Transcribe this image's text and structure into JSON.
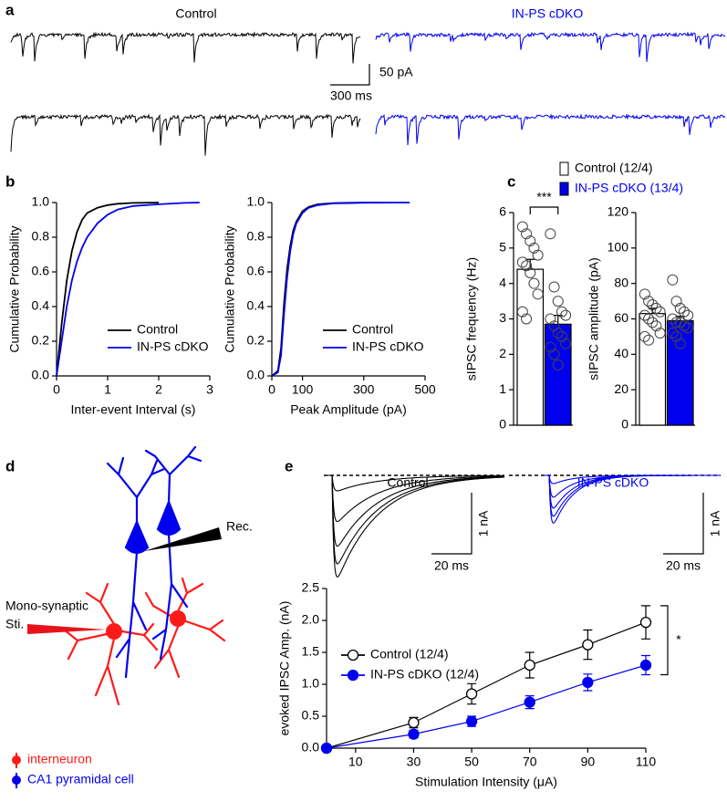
{
  "panel_labels": [
    "a",
    "b",
    "c",
    "d",
    "e"
  ],
  "traces_a": {
    "labels": [
      "Control",
      "IN-PS cDKO"
    ],
    "scale_y": "50 pA",
    "scale_x": "300 ms"
  },
  "traces_e": {
    "labels": [
      "Control",
      "IN-PS cDKO"
    ],
    "scale_y": [
      "1 nA",
      "1 nA"
    ],
    "scale_x": [
      "20 ms",
      "20 ms"
    ]
  },
  "diagram": {
    "recording": "Rec.",
    "stimulation": [
      "Mono-synaptic",
      "Sti."
    ],
    "legend": [
      "interneuron",
      "CA1 pyramidal cell"
    ]
  },
  "chart_data": [
    {
      "type": "line",
      "xlabel": "Inter-event Interval (s)",
      "ylabel": "Cumulative Probability",
      "xlim": [
        0,
        3
      ],
      "xticks": [
        0,
        1,
        2,
        3
      ],
      "ylim": [
        0,
        1
      ],
      "yticks": [
        {
          "value": 0,
          "label": "0.0"
        },
        0.2,
        0.4,
        0.6,
        0.8,
        {
          "value": 1,
          "label": "1.0"
        }
      ],
      "legend": "lower right",
      "series": [
        {
          "name": "Control",
          "color": "#000000",
          "x": [
            0,
            0.1,
            0.2,
            0.3,
            0.4,
            0.5,
            0.6,
            0.8,
            1.0,
            1.2,
            1.5,
            2.0
          ],
          "values": [
            0,
            0.3,
            0.55,
            0.72,
            0.83,
            0.9,
            0.94,
            0.97,
            0.985,
            0.993,
            0.998,
            1.0
          ]
        },
        {
          "name": "IN-PS cDKO",
          "color": "#0000ee",
          "x": [
            0,
            0.1,
            0.2,
            0.3,
            0.4,
            0.5,
            0.6,
            0.8,
            1.0,
            1.2,
            1.5,
            2.0,
            2.5,
            2.8
          ],
          "values": [
            0,
            0.2,
            0.4,
            0.55,
            0.66,
            0.74,
            0.8,
            0.88,
            0.93,
            0.96,
            0.98,
            0.99,
            0.998,
            1.0
          ]
        }
      ]
    },
    {
      "type": "line",
      "xlabel": "Peak Amplitude (pA)",
      "ylabel": "Cumulative Probability",
      "xlim": [
        0,
        500
      ],
      "xticks": [
        0,
        100,
        300,
        500
      ],
      "ylim": [
        0,
        1
      ],
      "yticks": [
        {
          "value": 0,
          "label": "0.0"
        },
        0.2,
        0.4,
        0.6,
        0.8,
        {
          "value": 1,
          "label": "1.0"
        }
      ],
      "legend": "lower right",
      "series": [
        {
          "name": "Control",
          "color": "#000000",
          "x": [
            0,
            20,
            30,
            40,
            50,
            60,
            70,
            80,
            100,
            120,
            150,
            200,
            300,
            350
          ],
          "values": [
            0,
            0.03,
            0.16,
            0.42,
            0.62,
            0.75,
            0.84,
            0.89,
            0.95,
            0.975,
            0.99,
            0.997,
            1,
            1
          ]
        },
        {
          "name": "IN-PS cDKO",
          "color": "#0000ee",
          "x": [
            0,
            20,
            30,
            40,
            50,
            60,
            70,
            80,
            100,
            120,
            150,
            200,
            300,
            400,
            450
          ],
          "values": [
            0,
            0.02,
            0.12,
            0.36,
            0.57,
            0.72,
            0.82,
            0.88,
            0.94,
            0.97,
            0.985,
            0.995,
            0.999,
            1,
            1
          ]
        }
      ]
    },
    {
      "type": "bar",
      "ylabel": "sIPSC frequency (Hz)",
      "ylim": [
        0,
        6
      ],
      "yticks": [
        0,
        1,
        2,
        3,
        4,
        5,
        6
      ],
      "annotation": "***",
      "series": [
        {
          "name": "Control (12/4)",
          "color": "#ffffff",
          "values": [
            4.4
          ],
          "errors": [
            0.28
          ],
          "points": [
            5.6,
            5.4,
            5.2,
            5.0,
            4.8,
            4.6,
            4.5,
            4.3,
            4.0,
            3.7,
            3.2,
            3.0
          ]
        },
        {
          "name": "IN-PS cDKO (13/4)",
          "color": "#0000ee",
          "values": [
            2.85
          ],
          "errors": [
            0.25
          ],
          "points": [
            5.4,
            3.9,
            3.5,
            3.2,
            3.1,
            3.0,
            2.8,
            2.6,
            2.5,
            2.3,
            2.2,
            2.0,
            1.7
          ]
        }
      ]
    },
    {
      "type": "bar",
      "ylabel": "sIPSC amplitude (pA)",
      "ylim": [
        0,
        120
      ],
      "yticks": [
        0,
        20,
        40,
        60,
        80,
        100,
        120
      ],
      "series": [
        {
          "color": "#ffffff",
          "values": [
            63
          ],
          "errors": [
            3
          ],
          "points": [
            74,
            70,
            68,
            66,
            64,
            62,
            60,
            58,
            56,
            52,
            50,
            48
          ]
        },
        {
          "color": "#0000ee",
          "values": [
            59
          ],
          "errors": [
            2.5
          ],
          "points": [
            82,
            70,
            66,
            64,
            62,
            60,
            58,
            58,
            56,
            55,
            52,
            50,
            46
          ]
        }
      ]
    },
    {
      "type": "line",
      "xlabel": "Stimulation Intensity (μA)",
      "ylabel": "evoked IPSC Amp. (nA)",
      "x": [
        0,
        30,
        50,
        70,
        90,
        110
      ],
      "xlim": [
        0,
        110
      ],
      "xticks": [
        10,
        30,
        50,
        70,
        90,
        110
      ],
      "ylim": [
        0,
        2.5
      ],
      "yticks": [
        {
          "value": 0,
          "label": "0.0"
        },
        0.5,
        {
          "value": 1,
          "label": "1.0"
        },
        1.5,
        {
          "value": 2,
          "label": "2.0"
        },
        2.5
      ],
      "legend": "upper left",
      "annotation": "*",
      "series": [
        {
          "name": "Control (12/4)",
          "color": "#000000",
          "marker": "open",
          "values": [
            0,
            0.4,
            0.85,
            1.3,
            1.62,
            1.97
          ],
          "errors": [
            0,
            0.08,
            0.16,
            0.2,
            0.23,
            0.26
          ]
        },
        {
          "name": "IN-PS cDKO (12/4)",
          "color": "#0000ee",
          "marker": "filled",
          "values": [
            0,
            0.22,
            0.42,
            0.72,
            1.03,
            1.3
          ],
          "errors": [
            0,
            0.06,
            0.08,
            0.1,
            0.13,
            0.15
          ]
        }
      ]
    }
  ]
}
